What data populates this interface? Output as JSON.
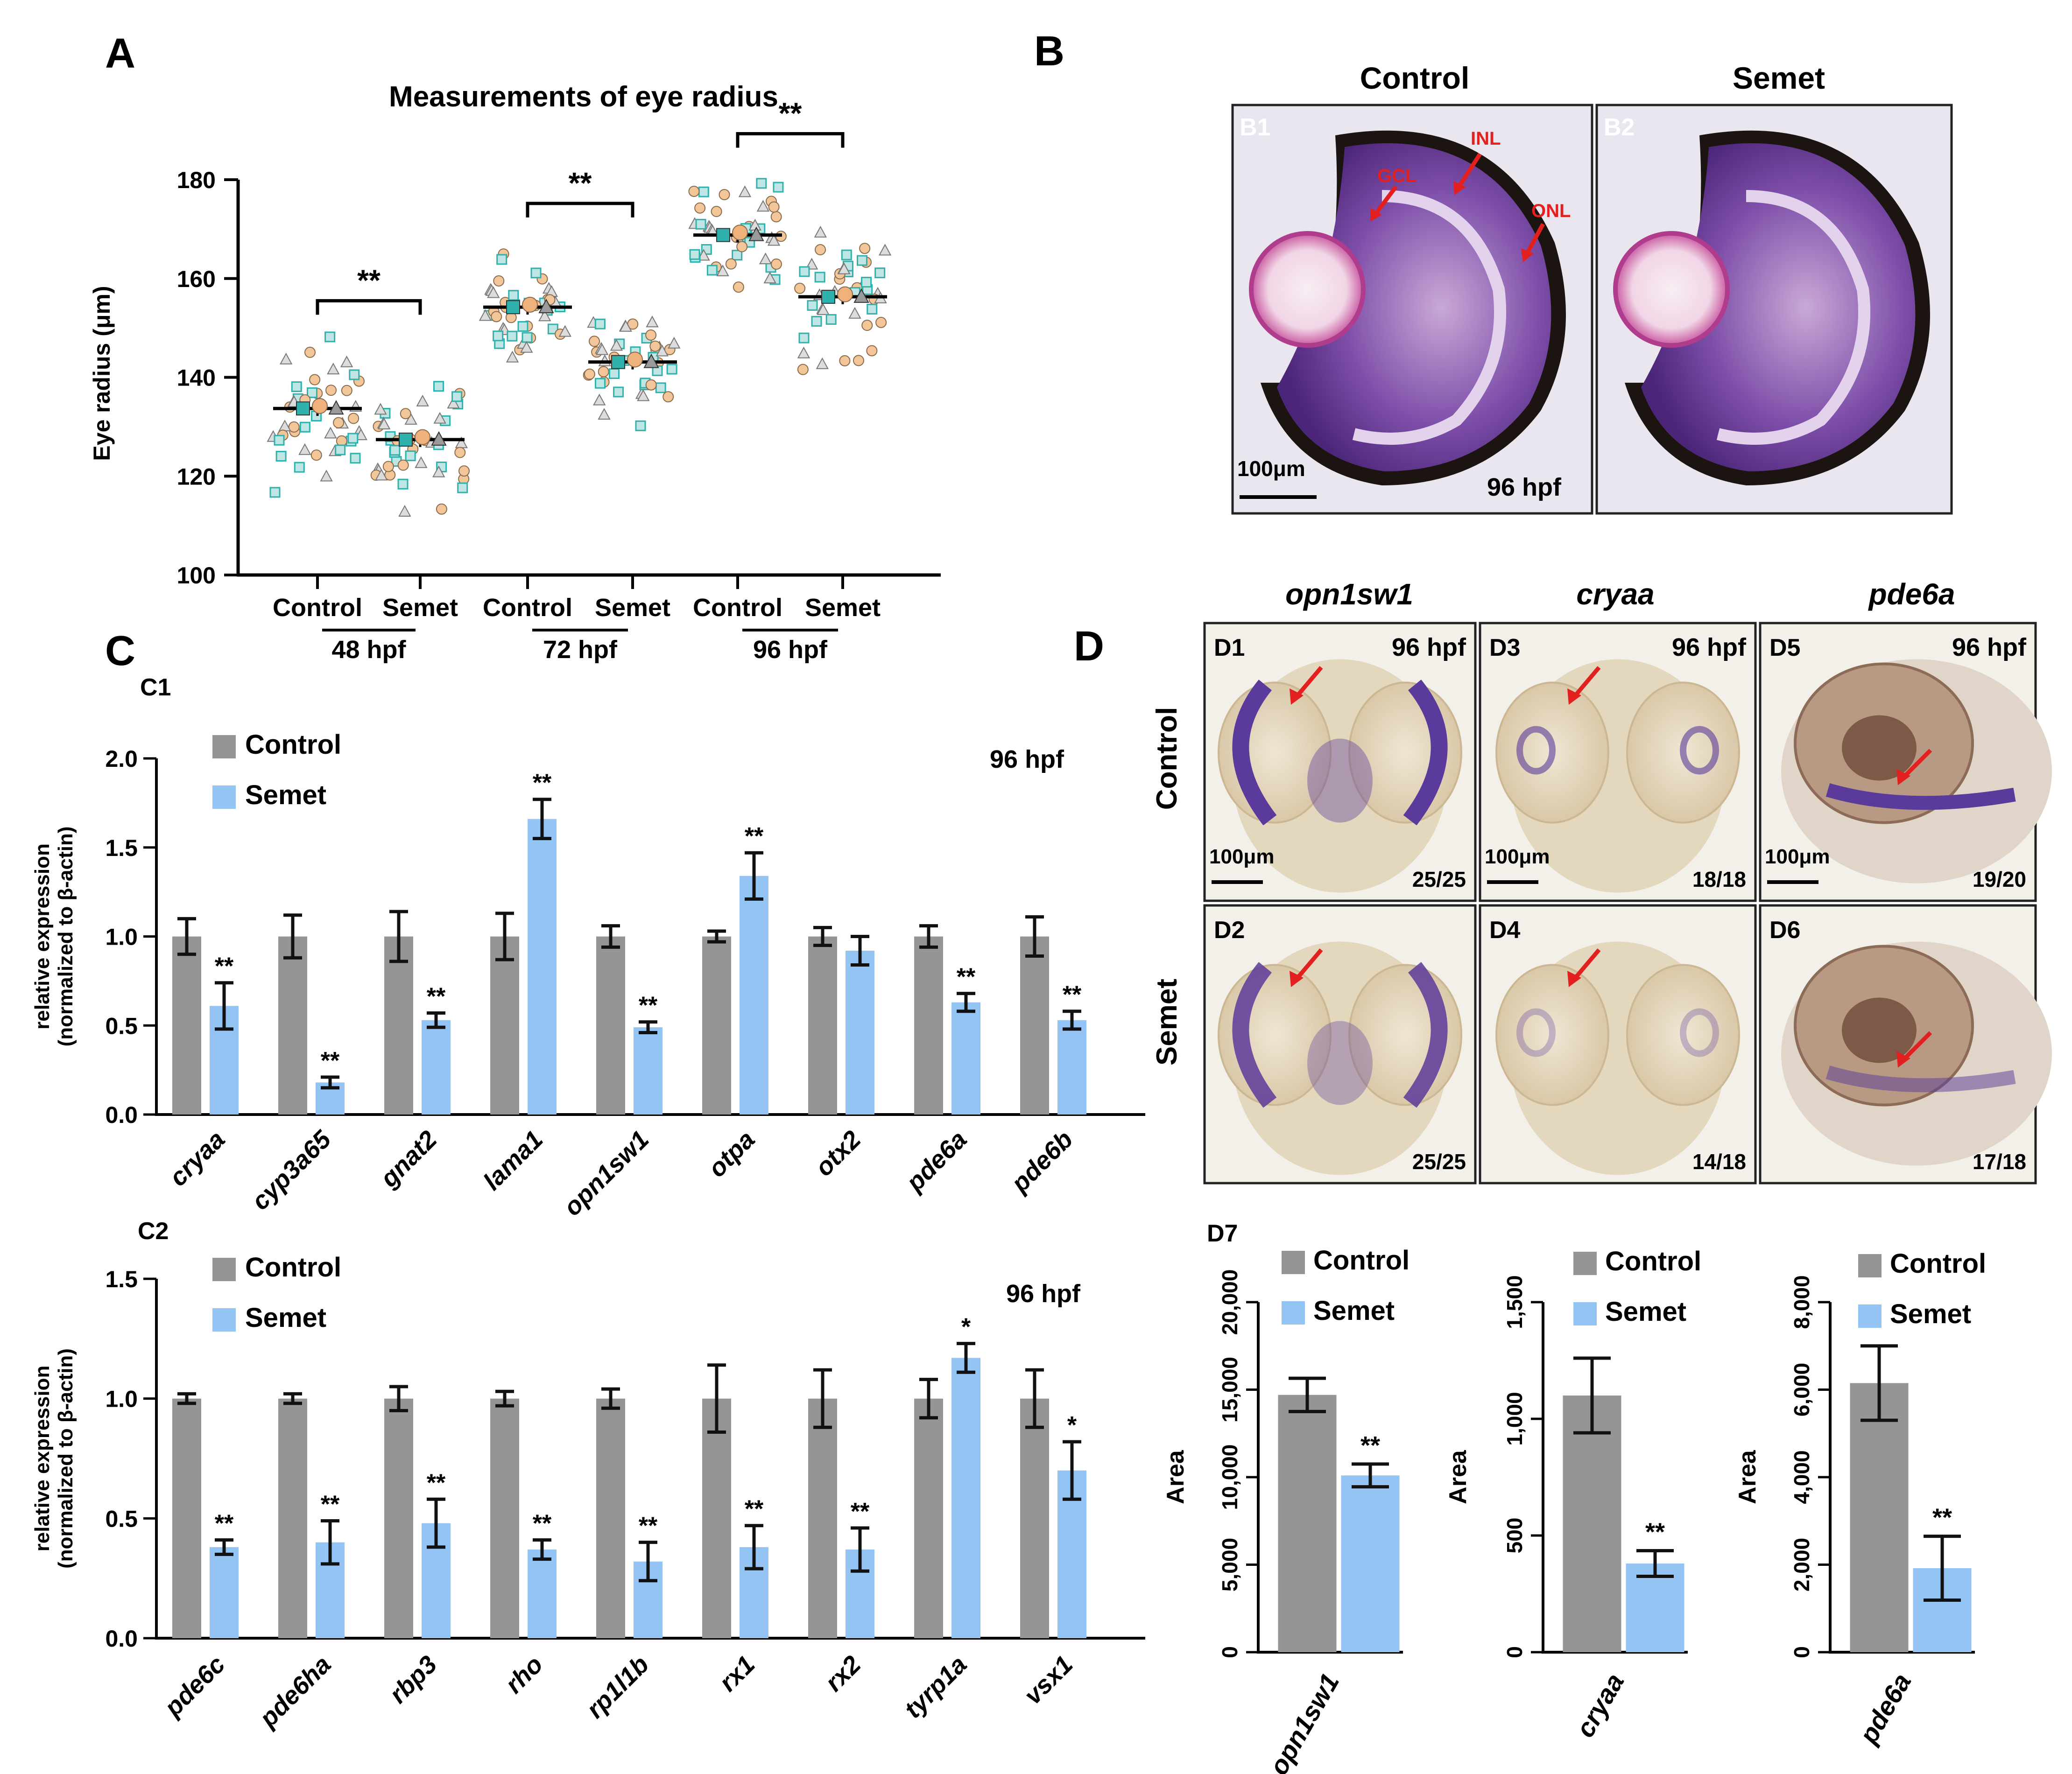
{
  "panels": {
    "A": "A",
    "B": "B",
    "C": "C",
    "D": "D"
  },
  "colors": {
    "control": "#959595",
    "semet": "#93c4f3",
    "teal": "#2fb1ad",
    "peach": "#f3c69a",
    "grey_tri": "#bdbdbd",
    "arrow": "#e32020",
    "stain": "#5a3a9a",
    "lens": "#efb8d6"
  },
  "chart_data": [
    {
      "id": "A",
      "type": "scatter",
      "title": "Measurements of eye radius",
      "ylabel": "Eye radius (μm)",
      "ylim": [
        100,
        180
      ],
      "yticks": [
        100,
        120,
        140,
        160,
        180
      ],
      "categories": [
        "Control",
        "Semet",
        "Control",
        "Semet",
        "Control",
        "Semet"
      ],
      "groups": [
        "48 hpf",
        "72 hpf",
        "96 hpf"
      ],
      "means": [
        133.7,
        127.4,
        154.2,
        143.1,
        168.8,
        156.3
      ],
      "sig": [
        "**",
        "**",
        "**"
      ]
    },
    {
      "id": "C1",
      "type": "bar",
      "sublabel": "C1",
      "legend": [
        "Control",
        "Semet"
      ],
      "timepoint": "96 hpf",
      "ylabel": "relative expression",
      "ylabel2": "(normalized to β-actin)",
      "ylim": [
        0,
        2.0
      ],
      "yticks": [
        "0.0",
        "0.5",
        "1.0",
        "1.5",
        "2.0"
      ],
      "categories": [
        "cryaa",
        "cyp3a65",
        "gnat2",
        "lama1",
        "opn1sw1",
        "otpa",
        "otx2",
        "pde6a",
        "pde6b"
      ],
      "series": [
        {
          "name": "Control",
          "values": [
            1.0,
            1.0,
            1.0,
            1.0,
            1.0,
            1.0,
            1.0,
            1.0,
            1.0
          ],
          "errors": [
            0.1,
            0.12,
            0.14,
            0.13,
            0.06,
            0.03,
            0.05,
            0.06,
            0.11
          ]
        },
        {
          "name": "Semet",
          "values": [
            0.61,
            0.18,
            0.53,
            1.66,
            0.49,
            1.34,
            0.92,
            0.63,
            0.53
          ],
          "errors": [
            0.13,
            0.03,
            0.04,
            0.11,
            0.03,
            0.13,
            0.08,
            0.05,
            0.05
          ]
        }
      ],
      "sig": [
        "**",
        "**",
        "**",
        "**",
        "**",
        "**",
        "",
        "**",
        "**"
      ]
    },
    {
      "id": "C2",
      "type": "bar",
      "sublabel": "C2",
      "legend": [
        "Control",
        "Semet"
      ],
      "timepoint": "96 hpf",
      "ylabel": "relative expression",
      "ylabel2": "(normalized to β-actin)",
      "ylim": [
        0,
        1.5
      ],
      "yticks": [
        "0.0",
        "0.5",
        "1.0",
        "1.5"
      ],
      "categories": [
        "pde6c",
        "pde6ha",
        "rbp3",
        "rho",
        "rp1l1b",
        "rx1",
        "rx2",
        "tyrp1a",
        "vsx1"
      ],
      "series": [
        {
          "name": "Control",
          "values": [
            1.0,
            1.0,
            1.0,
            1.0,
            1.0,
            1.0,
            1.0,
            1.0,
            1.0
          ],
          "errors": [
            0.02,
            0.02,
            0.05,
            0.03,
            0.04,
            0.14,
            0.12,
            0.08,
            0.12
          ]
        },
        {
          "name": "Semet",
          "values": [
            0.38,
            0.4,
            0.48,
            0.37,
            0.32,
            0.38,
            0.37,
            1.17,
            0.7
          ],
          "errors": [
            0.03,
            0.09,
            0.1,
            0.04,
            0.08,
            0.09,
            0.09,
            0.06,
            0.12
          ]
        }
      ],
      "sig": [
        "**",
        "**",
        "**",
        "**",
        "**",
        "**",
        "**",
        "*",
        "*"
      ]
    },
    {
      "id": "D7a",
      "type": "bar",
      "legend": [
        "Control",
        "Semet"
      ],
      "ylabel": "Area",
      "ylim": [
        0,
        20000
      ],
      "yticks": [
        "0",
        "5,000",
        "10,000",
        "15,000",
        "20,000"
      ],
      "category": "opn1sw1",
      "values": [
        14700,
        10100
      ],
      "errors": [
        950,
        650
      ],
      "sig": "**"
    },
    {
      "id": "D7b",
      "type": "bar",
      "legend": [
        "Control",
        "Semet"
      ],
      "ylabel": "Area",
      "ylim": [
        0,
        1500
      ],
      "yticks": [
        "0",
        "500",
        "1,000",
        "1,500"
      ],
      "category": "cryaa",
      "values": [
        1100,
        380
      ],
      "errors": [
        160,
        55
      ],
      "sig": "**"
    },
    {
      "id": "D7c",
      "type": "bar",
      "legend": [
        "Control",
        "Semet"
      ],
      "ylabel": "Area",
      "ylim": [
        0,
        8000
      ],
      "yticks": [
        "0",
        "2,000",
        "4,000",
        "6,000",
        "8,000"
      ],
      "category": "pde6a",
      "values": [
        6150,
        1920
      ],
      "errors": [
        850,
        730
      ],
      "sig": "**"
    }
  ],
  "panelB": {
    "headers": [
      "Control",
      "Semet"
    ],
    "sublabels": [
      "B1",
      "B2"
    ],
    "layers": [
      "GCL",
      "INL",
      "ONL"
    ],
    "scalebar": "100μm",
    "timepoint": "96 hpf"
  },
  "panelD": {
    "genes": [
      "opn1sw1",
      "cryaa",
      "pde6a"
    ],
    "rows": [
      "Control",
      "Semet"
    ],
    "sublabels": [
      "D1",
      "D3",
      "D5",
      "D2",
      "D4",
      "D6"
    ],
    "timepoint": "96 hpf",
    "scalebar": "100μm",
    "counts": [
      "25/25",
      "18/18",
      "19/20",
      "25/25",
      "14/18",
      "17/18"
    ],
    "d7_label": "D7"
  }
}
